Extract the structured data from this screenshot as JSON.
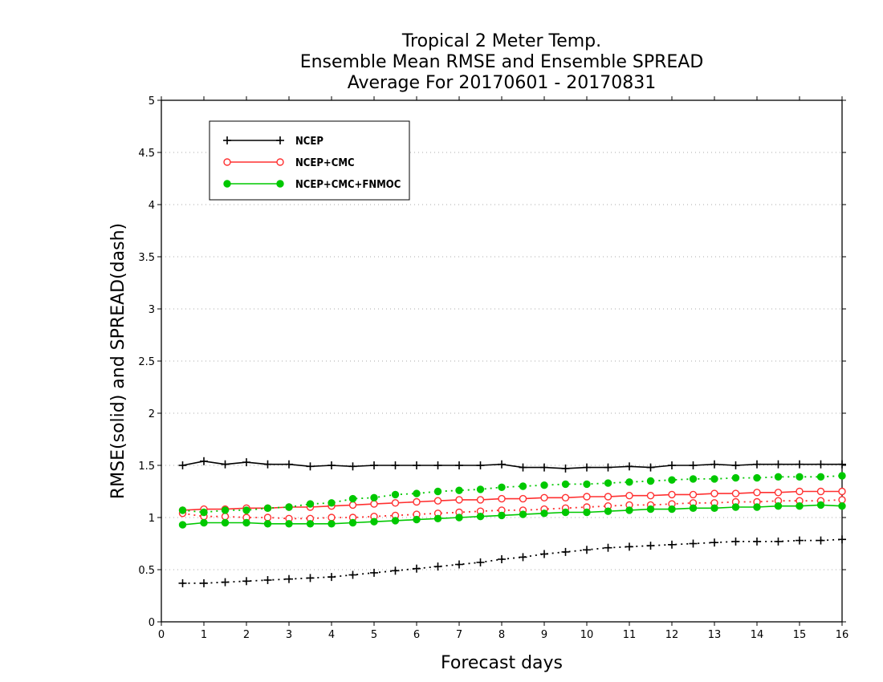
{
  "chart_data": {
    "type": "line",
    "title_lines": [
      "Tropical 2 Meter Temp.",
      "Ensemble Mean RMSE and Ensemble SPREAD",
      "Average For 20170601 - 20170831"
    ],
    "xlabel": "Forecast days",
    "ylabel": "RMSE(solid) and SPREAD(dash)",
    "xlim": [
      0,
      16
    ],
    "ylim": [
      0,
      5
    ],
    "xticks": [
      "0",
      "1",
      "2",
      "3",
      "4",
      "5",
      "6",
      "7",
      "8",
      "9",
      "10",
      "11",
      "12",
      "13",
      "14",
      "15",
      "16"
    ],
    "yticks": [
      "0",
      "0.5",
      "1",
      "1.5",
      "2",
      "2.5",
      "3",
      "3.5",
      "4",
      "4.5",
      "5"
    ],
    "grid": "horizontal dotted",
    "legend_position": "top-left",
    "x": [
      0.5,
      1,
      1.5,
      2,
      2.5,
      3,
      3.5,
      4,
      4.5,
      5,
      5.5,
      6,
      6.5,
      7,
      7.5,
      8,
      8.5,
      9,
      9.5,
      10,
      10.5,
      11,
      11.5,
      12,
      12.5,
      13,
      13.5,
      14,
      14.5,
      15,
      15.5,
      16
    ],
    "series": [
      {
        "name": "NCEP",
        "color": "#000000",
        "marker": "plus",
        "rmse": [
          1.5,
          1.54,
          1.51,
          1.53,
          1.51,
          1.51,
          1.49,
          1.5,
          1.49,
          1.5,
          1.5,
          1.5,
          1.5,
          1.5,
          1.5,
          1.51,
          1.48,
          1.48,
          1.47,
          1.48,
          1.48,
          1.49,
          1.48,
          1.5,
          1.5,
          1.51,
          1.5,
          1.51,
          1.51,
          1.51,
          1.51,
          1.51
        ],
        "spread": [
          0.37,
          0.37,
          0.38,
          0.39,
          0.4,
          0.41,
          0.42,
          0.43,
          0.45,
          0.47,
          0.49,
          0.51,
          0.53,
          0.55,
          0.57,
          0.6,
          0.62,
          0.65,
          0.67,
          0.69,
          0.71,
          0.72,
          0.73,
          0.74,
          0.75,
          0.76,
          0.77,
          0.77,
          0.77,
          0.78,
          0.78,
          0.79
        ]
      },
      {
        "name": "NCEP+CMC",
        "color": "#ff3030",
        "marker": "open-circle",
        "rmse": [
          1.07,
          1.08,
          1.08,
          1.09,
          1.09,
          1.1,
          1.1,
          1.11,
          1.12,
          1.13,
          1.14,
          1.15,
          1.16,
          1.17,
          1.17,
          1.18,
          1.18,
          1.19,
          1.19,
          1.2,
          1.2,
          1.21,
          1.21,
          1.22,
          1.22,
          1.23,
          1.23,
          1.24,
          1.24,
          1.25,
          1.25,
          1.25
        ],
        "spread": [
          1.04,
          1.01,
          1.01,
          1.0,
          1.0,
          0.99,
          0.99,
          1.0,
          1.0,
          1.01,
          1.02,
          1.03,
          1.04,
          1.05,
          1.06,
          1.07,
          1.07,
          1.08,
          1.09,
          1.1,
          1.11,
          1.12,
          1.12,
          1.13,
          1.14,
          1.14,
          1.15,
          1.15,
          1.16,
          1.16,
          1.16,
          1.17
        ]
      },
      {
        "name": "NCEP+CMC+FNMOC",
        "color": "#00c800",
        "marker": "filled-circle",
        "rmse": [
          0.93,
          0.95,
          0.95,
          0.95,
          0.94,
          0.94,
          0.94,
          0.94,
          0.95,
          0.96,
          0.97,
          0.98,
          0.99,
          1.0,
          1.01,
          1.02,
          1.03,
          1.04,
          1.05,
          1.05,
          1.06,
          1.07,
          1.08,
          1.08,
          1.09,
          1.09,
          1.1,
          1.1,
          1.11,
          1.11,
          1.12,
          1.11
        ],
        "spread": [
          1.07,
          1.05,
          1.07,
          1.07,
          1.09,
          1.1,
          1.13,
          1.14,
          1.18,
          1.19,
          1.22,
          1.23,
          1.25,
          1.26,
          1.27,
          1.29,
          1.3,
          1.31,
          1.32,
          1.32,
          1.33,
          1.34,
          1.35,
          1.36,
          1.37,
          1.37,
          1.38,
          1.38,
          1.39,
          1.39,
          1.39,
          1.4
        ]
      }
    ]
  }
}
